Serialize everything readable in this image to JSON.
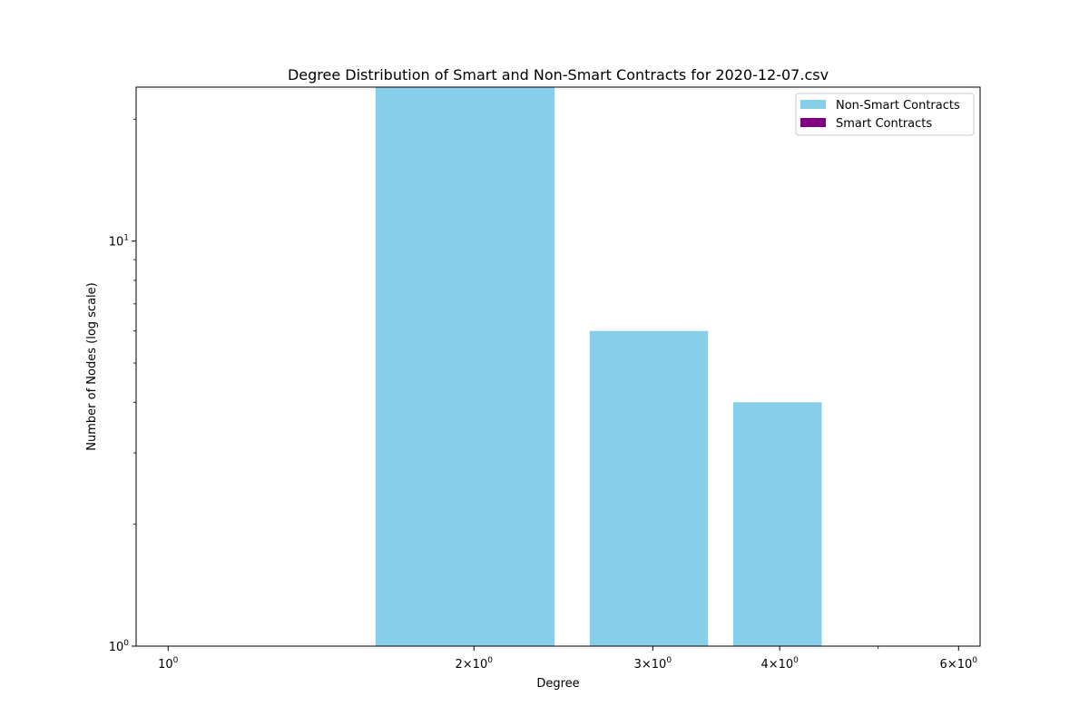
{
  "chart_data": {
    "type": "bar",
    "title": "Degree Distribution of Smart and Non-Smart Contracts for 2020-12-07.csv",
    "xlabel": "Degree",
    "ylabel": "Number of Nodes (log scale)",
    "x_scale": "log",
    "y_scale": "log",
    "xlim": [
      0.93,
      6.3
    ],
    "ylim": [
      1,
      24
    ],
    "x_ticks": [
      {
        "value": 1,
        "base": "10",
        "exp": "0",
        "mantissa": ""
      },
      {
        "value": 2,
        "base": "10",
        "exp": "0",
        "mantissa": "2"
      },
      {
        "value": 3,
        "base": "10",
        "exp": "0",
        "mantissa": "3"
      },
      {
        "value": 4,
        "base": "10",
        "exp": "0",
        "mantissa": "4"
      },
      {
        "value": 6,
        "base": "10",
        "exp": "0",
        "mantissa": "6"
      }
    ],
    "y_ticks": [
      {
        "value": 1,
        "base": "10",
        "exp": "0"
      },
      {
        "value": 10,
        "base": "10",
        "exp": "1"
      }
    ],
    "legend_position": "top-right",
    "series": [
      {
        "name": "Non-Smart Contracts",
        "color": "#87ceeb",
        "points": [
          {
            "x": 2,
            "y": 24
          },
          {
            "x": 3,
            "y": 6
          },
          {
            "x": 4,
            "y": 4
          }
        ]
      },
      {
        "name": "Smart Contracts",
        "color": "#800080",
        "points": []
      }
    ],
    "grid": false
  }
}
